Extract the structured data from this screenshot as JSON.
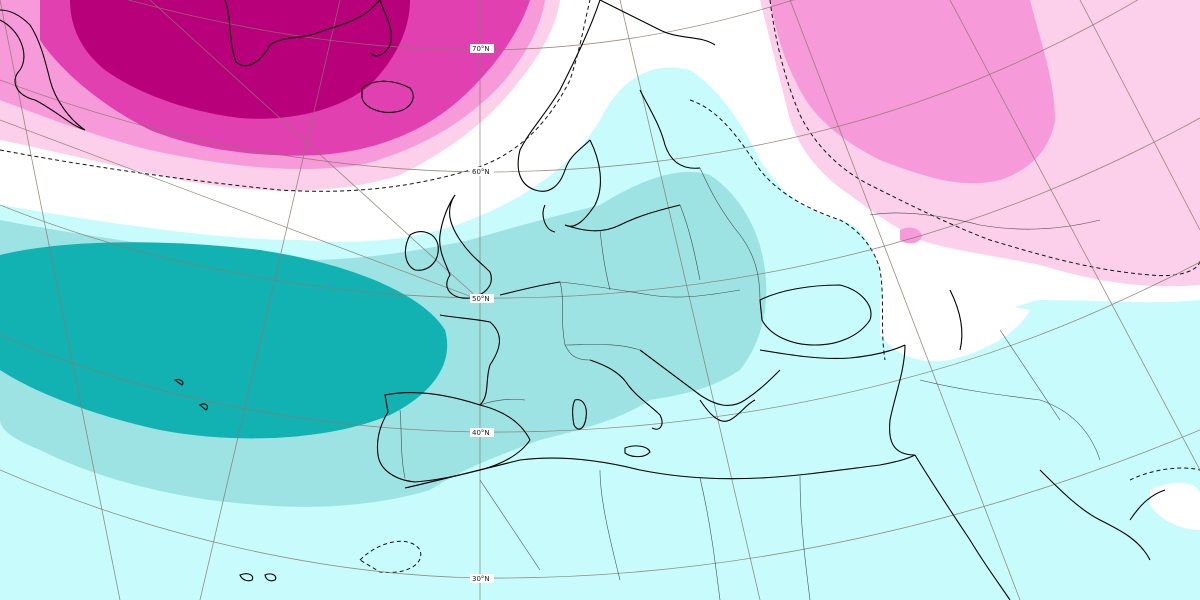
{
  "map": {
    "colors": {
      "background_anomaly_light_cyan": "#c8fcfc",
      "neutral": "#ffffff",
      "cyan_mid": "#9ee3e3",
      "teal_strong": "#12b2b2",
      "pink_light": "#fcd0ea",
      "pink_mid": "#f79ad9",
      "magenta": "#e040b0",
      "magenta_dark": "#b8007a",
      "coastline": "#000000",
      "border": "#333333",
      "graticule": "#8a7a6a"
    },
    "latitude_labels": [
      {
        "key": "70",
        "text": "70°N"
      },
      {
        "key": "60",
        "text": "60°N"
      },
      {
        "key": "50",
        "text": "50°N"
      },
      {
        "key": "40",
        "text": "40°N"
      },
      {
        "key": "30",
        "text": "30°N"
      }
    ]
  }
}
